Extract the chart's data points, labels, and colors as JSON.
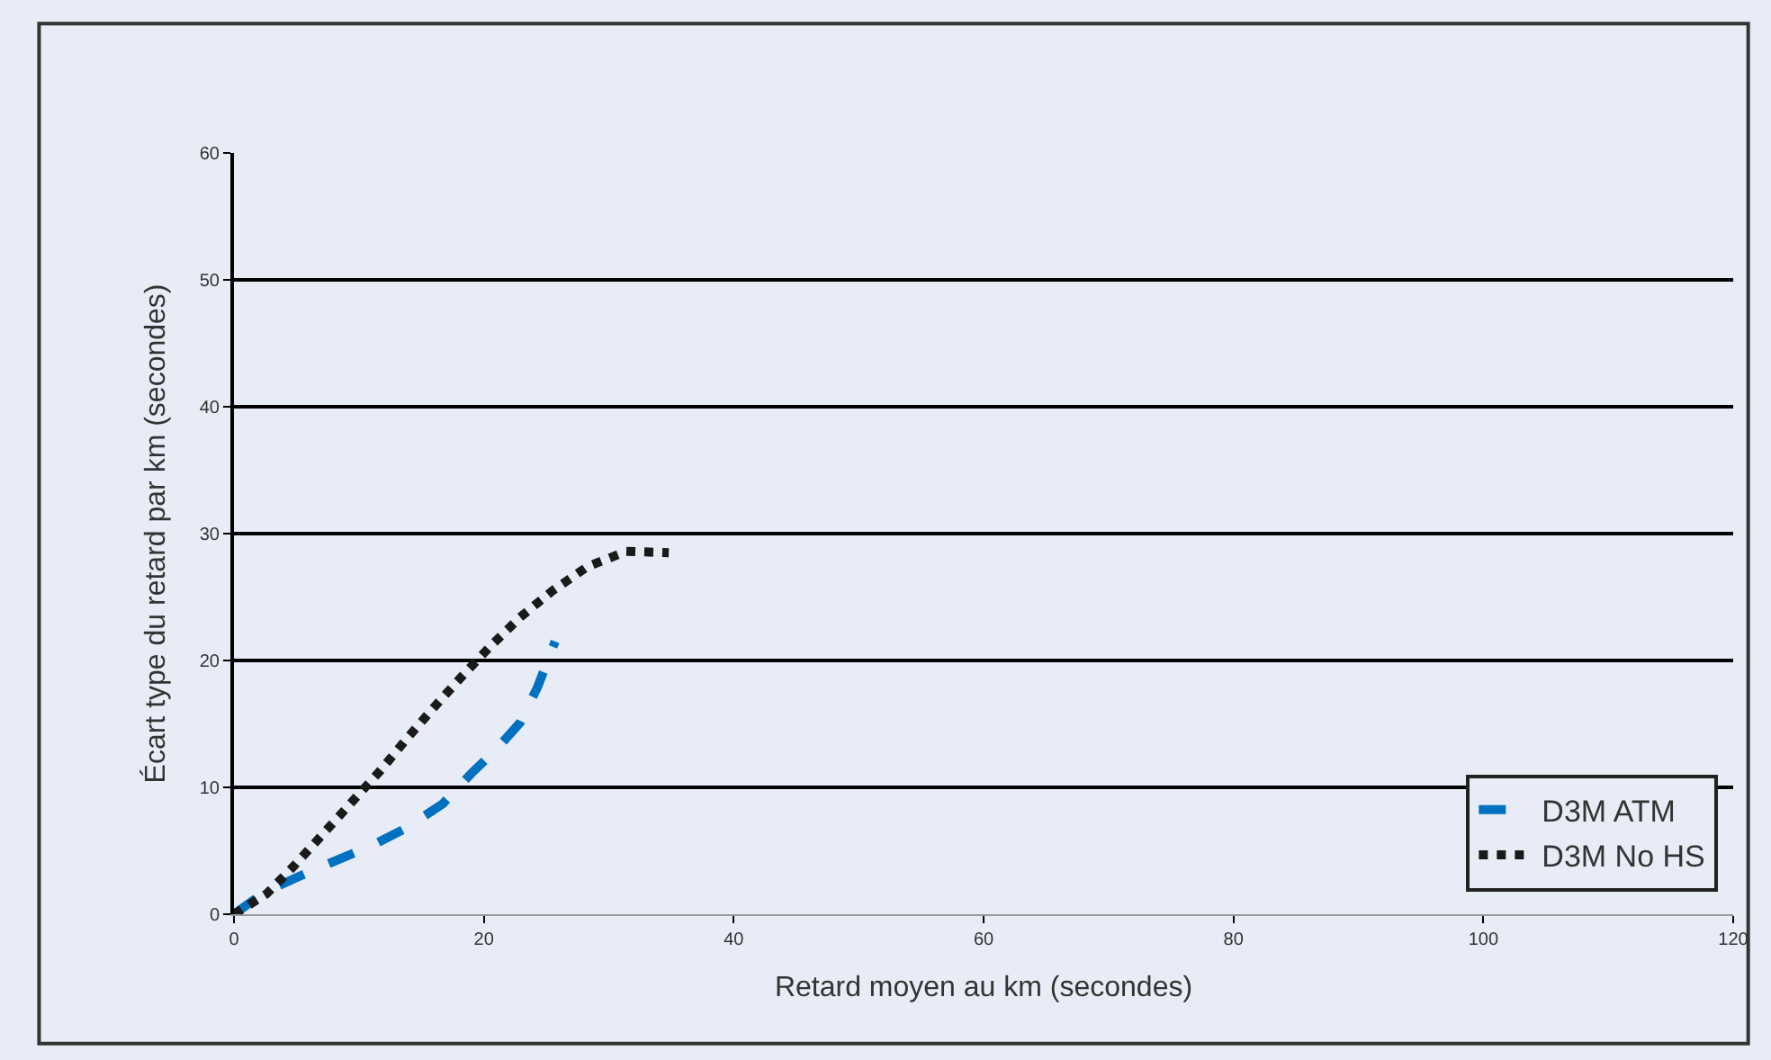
{
  "chart_data": {
    "type": "line",
    "xlabel": "Retard moyen au km (secondes)",
    "ylabel": "Écart type du retard par km (secondes)",
    "xlim": [
      0,
      120
    ],
    "xticks": [
      0,
      20,
      40,
      60,
      80,
      100,
      120
    ],
    "ylim": [
      0,
      60
    ],
    "yticks": [
      0,
      10,
      20,
      30,
      40,
      50,
      60
    ],
    "grid": "y",
    "legend": "bottom right",
    "marker": "none",
    "series": [
      {
        "name": "D3M ATM",
        "color": "#0070c0",
        "line_style": "dashed",
        "x": [
          0,
          2.4,
          4.8,
          7.6,
          11,
          13.8,
          16.7,
          19,
          21,
          22.9,
          24.3,
          25.7
        ],
        "values": [
          0,
          1.7,
          2.8,
          4.0,
          5.4,
          6.8,
          8.7,
          11.1,
          13,
          15.1,
          17.9,
          21.5
        ]
      },
      {
        "name": "D3M No HS",
        "color": "#1a1a1a",
        "line_style": "dotted",
        "x": [
          0,
          2.6,
          4.7,
          7.1,
          9.4,
          11.7,
          13.8,
          16,
          18.2,
          20.5,
          22.9,
          25.5,
          28.3,
          31.4,
          34.8
        ],
        "values": [
          0,
          1.6,
          3.7,
          6.3,
          8.8,
          11.3,
          13.8,
          16.3,
          18.7,
          21.1,
          23.4,
          25.5,
          27.4,
          28.6,
          28.5
        ]
      }
    ]
  }
}
